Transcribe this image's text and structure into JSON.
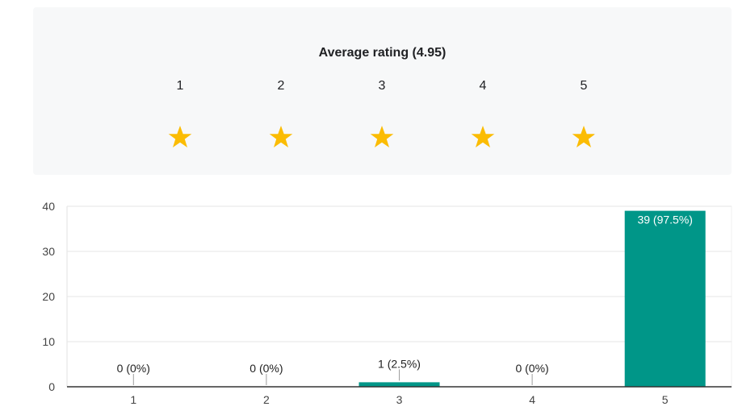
{
  "rating_summary": {
    "title": "Average rating (4.95)",
    "average": 4.95,
    "star_color": "#fbbc04",
    "star_empty_color": "#c8c8c8",
    "levels": [
      {
        "label": "1",
        "fill": 1
      },
      {
        "label": "2",
        "fill": 1
      },
      {
        "label": "3",
        "fill": 1
      },
      {
        "label": "4",
        "fill": 1
      },
      {
        "label": "5",
        "fill": 0.95
      }
    ]
  },
  "chart_data": {
    "type": "bar",
    "categories": [
      "1",
      "2",
      "3",
      "4",
      "5"
    ],
    "values": [
      0,
      0,
      1,
      0,
      39
    ],
    "data_labels": [
      "0 (0%)",
      "0 (0%)",
      "1 (2.5%)",
      "0 (0%)",
      "39 (97.5%)"
    ],
    "title": "",
    "xlabel": "",
    "ylabel": "",
    "ylim": [
      0,
      40
    ],
    "yticks": [
      "0",
      "10",
      "20",
      "30",
      "40"
    ],
    "grid": true,
    "bar_color": "#009688"
  }
}
